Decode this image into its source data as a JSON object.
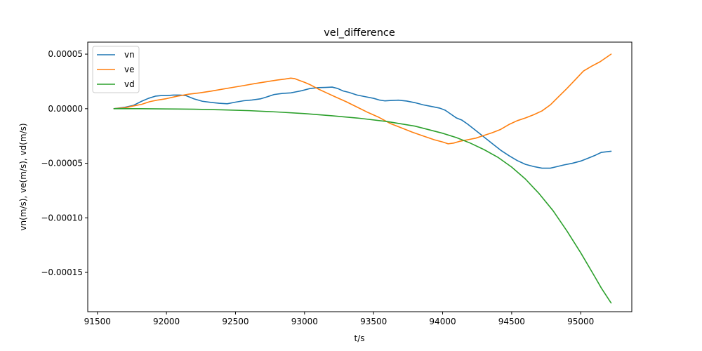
{
  "chart_data": {
    "type": "line",
    "title": "vel_difference",
    "xlabel": "t/s",
    "ylabel": "vn(m/s), ve(m/s), vd(m/s)",
    "xlim": [
      91430,
      95370
    ],
    "ylim": [
      -0.000186,
      6.1e-05
    ],
    "xticks": [
      91500,
      92000,
      92500,
      93000,
      93500,
      94000,
      94500,
      95000
    ],
    "xtick_labels": [
      "91500",
      "92000",
      "92500",
      "93000",
      "93500",
      "94000",
      "94500",
      "95000"
    ],
    "yticks": [
      5e-05,
      0.0,
      -5e-05,
      -0.0001,
      -0.00015
    ],
    "ytick_labels": [
      "0.00005",
      "0.00000",
      "−0.00005",
      "−0.00010",
      "−0.00015"
    ],
    "grid": false,
    "legend_position": "top-left",
    "series": [
      {
        "name": "vn",
        "color": "#1f77b4",
        "x": [
          91620,
          91700,
          91760,
          91820,
          91870,
          91920,
          91960,
          92000,
          92050,
          92100,
          92140,
          92200,
          92260,
          92320,
          92380,
          92440,
          92500,
          92560,
          92620,
          92680,
          92720,
          92780,
          92840,
          92900,
          92940,
          92980,
          93040,
          93100,
          93150,
          93200,
          93240,
          93280,
          93320,
          93380,
          93440,
          93500,
          93540,
          93580,
          93620,
          93680,
          93740,
          93800,
          93860,
          93920,
          93980,
          94020,
          94060,
          94100,
          94140,
          94180,
          94240,
          94300,
          94360,
          94420,
          94480,
          94540,
          94600,
          94660,
          94720,
          94780,
          94830,
          94880,
          94940,
          95000,
          95050,
          95100,
          95150,
          95220
        ],
        "y": [
          0.0,
          1.3e-06,
          3e-06,
          6.8e-06,
          9.5e-06,
          1.15e-05,
          1.2e-05,
          1.2e-05,
          1.25e-05,
          1.25e-05,
          1.2e-05,
          9e-06,
          6.8e-06,
          5.8e-06,
          5e-06,
          4.5e-06,
          6e-06,
          7.3e-06,
          8e-06,
          9e-06,
          1.05e-05,
          1.3e-05,
          1.4e-05,
          1.45e-05,
          1.55e-05,
          1.65e-05,
          1.85e-05,
          1.93e-05,
          1.95e-05,
          1.98e-05,
          1.85e-05,
          1.62e-05,
          1.5e-05,
          1.25e-05,
          1.1e-05,
          9.5e-06,
          8e-06,
          7.2e-06,
          7.5e-06,
          7.8e-06,
          7e-06,
          5.5e-06,
          3.5e-06,
          2e-06,
          5e-07,
          -1.5e-06,
          -5e-06,
          -8.5e-06,
          -1.05e-05,
          -1.4e-05,
          -2e-05,
          -2.6e-05,
          -3.2e-05,
          -3.8e-05,
          -4.3e-05,
          -4.75e-05,
          -5.1e-05,
          -5.3e-05,
          -5.45e-05,
          -5.45e-05,
          -5.3e-05,
          -5.15e-05,
          -5e-05,
          -4.8e-05,
          -4.55e-05,
          -4.3e-05,
          -4e-05,
          -3.9e-05
        ]
      },
      {
        "name": "ve",
        "color": "#ff7f0e",
        "x": [
          91620,
          91700,
          91760,
          91820,
          91880,
          91940,
          92000,
          92080,
          92160,
          92240,
          92320,
          92400,
          92480,
          92560,
          92640,
          92720,
          92800,
          92860,
          92900,
          92930,
          92960,
          93000,
          93040,
          93100,
          93160,
          93220,
          93300,
          93380,
          93460,
          93540,
          93620,
          93700,
          93780,
          93860,
          93940,
          94000,
          94040,
          94080,
          94120,
          94180,
          94240,
          94300,
          94360,
          94420,
          94480,
          94540,
          94600,
          94660,
          94720,
          94780,
          94840,
          94900,
          94960,
          95020,
          95080,
          95140,
          95220
        ],
        "y": [
          0.0,
          8e-07,
          2.5e-06,
          4e-06,
          6.5e-06,
          8e-06,
          9.2e-06,
          1.15e-05,
          1.33e-05,
          1.45e-05,
          1.6e-05,
          1.78e-05,
          1.95e-05,
          2.12e-05,
          2.3e-05,
          2.46e-05,
          2.62e-05,
          2.72e-05,
          2.8e-05,
          2.75e-05,
          2.6e-05,
          2.42e-05,
          2.2e-05,
          1.8e-05,
          1.45e-05,
          1.1e-05,
          6.5e-06,
          1.5e-06,
          -3.5e-06,
          -8e-06,
          -1.35e-05,
          -1.75e-05,
          -2.15e-05,
          -2.5e-05,
          -2.85e-05,
          -3.05e-05,
          -3.22e-05,
          -3.15e-05,
          -3e-05,
          -2.85e-05,
          -2.7e-05,
          -2.45e-05,
          -2.2e-05,
          -1.9e-05,
          -1.45e-05,
          -1.1e-05,
          -8.5e-06,
          -5.5e-06,
          -2e-06,
          3.5e-06,
          1.1e-05,
          1.85e-05,
          2.65e-05,
          3.45e-05,
          3.9e-05,
          4.3e-05,
          5e-05
        ]
      },
      {
        "name": "vd",
        "color": "#2ca02c",
        "x": [
          91620,
          91800,
          92000,
          92200,
          92400,
          92600,
          92800,
          93000,
          93200,
          93400,
          93600,
          93800,
          94000,
          94100,
          94200,
          94300,
          94400,
          94500,
          94600,
          94700,
          94800,
          94900,
          95000,
          95100,
          95150,
          95220
        ],
        "y": [
          0.0,
          0.0,
          -2e-07,
          -5e-07,
          -1e-06,
          -1.8e-06,
          -3e-06,
          -4.5e-06,
          -6.5e-06,
          -8.8e-06,
          -1.18e-05,
          -1.6e-05,
          -2.25e-05,
          -2.65e-05,
          -3.15e-05,
          -3.75e-05,
          -4.45e-05,
          -5.35e-05,
          -6.45e-05,
          -7.8e-05,
          -9.35e-05,
          -0.000112,
          -0.000132,
          -0.0001535,
          -0.0001645,
          -0.000178
        ]
      }
    ]
  }
}
